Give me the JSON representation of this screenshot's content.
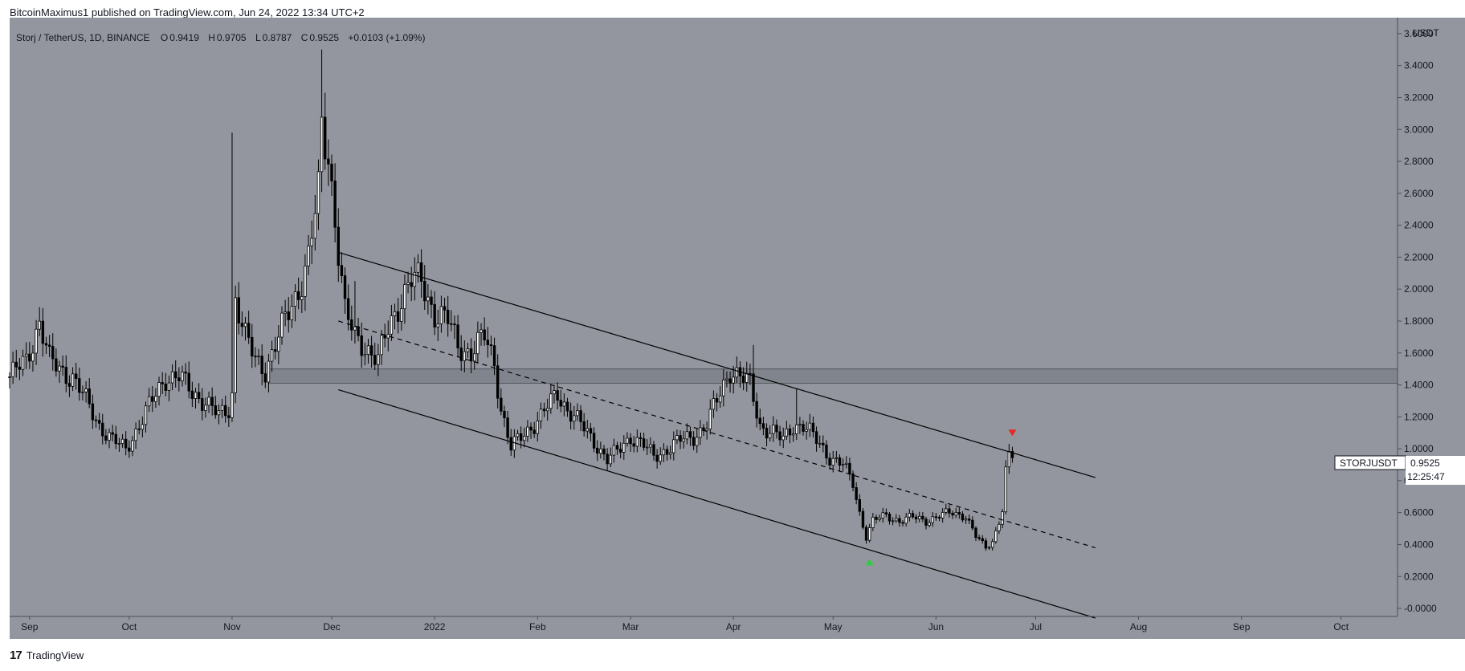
{
  "header": {
    "published_by": "BitcoinMaximus1 published on TradingView.com, Jun 24, 2022 13:34 UTC+2"
  },
  "footer": {
    "brand": "TradingView",
    "brand_mark": "17"
  },
  "legend": {
    "symbol": "Storj / TetherUS, 1D, BINANCE",
    "o_label": "O",
    "o": "0.9419",
    "h_label": "H",
    "h": "0.9705",
    "l_label": "L",
    "l": "0.8787",
    "c_label": "C",
    "c": "0.9525",
    "change": "+0.0103 (+1.09%)"
  },
  "price_tag": {
    "symbol": "STORJUSDT",
    "price": "0.9525",
    "countdown": "12:25:47"
  },
  "colors": {
    "background": "#93969e",
    "candle": "#000000",
    "channel": "#000000",
    "zone": "#7a7d85",
    "up_marker": "#2ecc40",
    "down_marker": "#e8281f"
  },
  "chart_data": {
    "type": "candlestick",
    "currency": "USDT",
    "ylim": [
      -0.05,
      3.7
    ],
    "y_ticks": [
      -0.0,
      0.2,
      0.4,
      0.6,
      0.8,
      1.0,
      1.2,
      1.4,
      1.6,
      1.8,
      2.0,
      2.2,
      2.4,
      2.6,
      2.8,
      3.0,
      3.2,
      3.4,
      3.6
    ],
    "y_tick_labels": [
      "-0.0000",
      "0.2000",
      "0.4000",
      "0.6000",
      "0.8000",
      "1.0000",
      "1.2000",
      "1.4000",
      "1.6000",
      "1.8000",
      "2.0000",
      "2.2000",
      "2.4000",
      "2.6000",
      "2.8000",
      "3.0000",
      "3.2000",
      "3.4000",
      "3.6000"
    ],
    "x_range": [
      "2021-08-26",
      "2022-10-18"
    ],
    "x_ticks": [
      {
        "date": "2021-09-01",
        "label": "Sep"
      },
      {
        "date": "2021-10-01",
        "label": "Oct"
      },
      {
        "date": "2021-11-01",
        "label": "Nov"
      },
      {
        "date": "2021-12-01",
        "label": "Dec"
      },
      {
        "date": "2022-01-01",
        "label": "2022"
      },
      {
        "date": "2022-02-01",
        "label": "Feb"
      },
      {
        "date": "2022-03-01",
        "label": "Mar"
      },
      {
        "date": "2022-04-01",
        "label": "Apr"
      },
      {
        "date": "2022-05-01",
        "label": "May"
      },
      {
        "date": "2022-06-01",
        "label": "Jun"
      },
      {
        "date": "2022-07-01",
        "label": "Jul"
      },
      {
        "date": "2022-08-01",
        "label": "Aug"
      },
      {
        "date": "2022-09-01",
        "label": "Sep"
      },
      {
        "date": "2022-10-01",
        "label": "Oct"
      }
    ],
    "close_path": [
      [
        "2021-08-26",
        1.45
      ],
      [
        "2021-08-31",
        1.55
      ],
      [
        "2021-09-04",
        1.8
      ],
      [
        "2021-09-07",
        1.55
      ],
      [
        "2021-09-10",
        1.5
      ],
      [
        "2021-09-14",
        1.45
      ],
      [
        "2021-09-18",
        1.3
      ],
      [
        "2021-09-22",
        1.15
      ],
      [
        "2021-09-26",
        1.05
      ],
      [
        "2021-09-30",
        1.0
      ],
      [
        "2021-10-04",
        1.15
      ],
      [
        "2021-10-08",
        1.3
      ],
      [
        "2021-10-12",
        1.45
      ],
      [
        "2021-10-16",
        1.45
      ],
      [
        "2021-10-20",
        1.35
      ],
      [
        "2021-10-24",
        1.3
      ],
      [
        "2021-10-28",
        1.2
      ],
      [
        "2021-10-31",
        1.25
      ],
      [
        "2021-11-01",
        1.35
      ],
      [
        "2021-11-02",
        1.95
      ],
      [
        "2021-11-05",
        1.7
      ],
      [
        "2021-11-08",
        1.55
      ],
      [
        "2021-11-11",
        1.5
      ],
      [
        "2021-11-14",
        1.65
      ],
      [
        "2021-11-18",
        1.85
      ],
      [
        "2021-11-21",
        2.0
      ],
      [
        "2021-11-24",
        2.2
      ],
      [
        "2021-11-27",
        2.6
      ],
      [
        "2021-11-28",
        3.0
      ],
      [
        "2021-11-30",
        2.85
      ],
      [
        "2021-12-03",
        2.25
      ],
      [
        "2021-12-05",
        1.85
      ],
      [
        "2021-12-08",
        1.7
      ],
      [
        "2021-12-11",
        1.65
      ],
      [
        "2021-12-15",
        1.55
      ],
      [
        "2021-12-18",
        1.75
      ],
      [
        "2021-12-22",
        1.95
      ],
      [
        "2021-12-25",
        2.05
      ],
      [
        "2021-12-28",
        2.05
      ],
      [
        "2022-01-01",
        1.85
      ],
      [
        "2022-01-05",
        1.8
      ],
      [
        "2022-01-08",
        1.65
      ],
      [
        "2022-01-12",
        1.6
      ],
      [
        "2022-01-16",
        1.7
      ],
      [
        "2022-01-19",
        1.55
      ],
      [
        "2022-01-21",
        1.25
      ],
      [
        "2022-01-24",
        1.0
      ],
      [
        "2022-01-28",
        1.1
      ],
      [
        "2022-02-02",
        1.2
      ],
      [
        "2022-02-07",
        1.35
      ],
      [
        "2022-02-10",
        1.25
      ],
      [
        "2022-02-14",
        1.15
      ],
      [
        "2022-02-18",
        1.05
      ],
      [
        "2022-02-22",
        0.93
      ],
      [
        "2022-02-25",
        0.98
      ],
      [
        "2022-03-01",
        1.08
      ],
      [
        "2022-03-05",
        1.02
      ],
      [
        "2022-03-08",
        0.95
      ],
      [
        "2022-03-12",
        1.0
      ],
      [
        "2022-03-16",
        1.05
      ],
      [
        "2022-03-20",
        1.08
      ],
      [
        "2022-03-24",
        1.15
      ],
      [
        "2022-03-28",
        1.35
      ],
      [
        "2022-03-31",
        1.5
      ],
      [
        "2022-04-03",
        1.45
      ],
      [
        "2022-04-06",
        1.4
      ],
      [
        "2022-04-09",
        1.15
      ],
      [
        "2022-04-13",
        1.1
      ],
      [
        "2022-04-16",
        1.05
      ],
      [
        "2022-04-19",
        1.15
      ],
      [
        "2022-04-22",
        1.15
      ],
      [
        "2022-04-26",
        1.05
      ],
      [
        "2022-04-30",
        0.95
      ],
      [
        "2022-05-04",
        0.9
      ],
      [
        "2022-05-07",
        0.78
      ],
      [
        "2022-05-09",
        0.6
      ],
      [
        "2022-05-11",
        0.45
      ],
      [
        "2022-05-13",
        0.55
      ],
      [
        "2022-05-17",
        0.58
      ],
      [
        "2022-05-21",
        0.55
      ],
      [
        "2022-05-25",
        0.57
      ],
      [
        "2022-05-29",
        0.55
      ],
      [
        "2022-06-02",
        0.58
      ],
      [
        "2022-06-06",
        0.6
      ],
      [
        "2022-06-10",
        0.58
      ],
      [
        "2022-06-13",
        0.45
      ],
      [
        "2022-06-16",
        0.38
      ],
      [
        "2022-06-18",
        0.42
      ],
      [
        "2022-06-20",
        0.55
      ],
      [
        "2022-06-21",
        0.62
      ],
      [
        "2022-06-22",
        0.85
      ],
      [
        "2022-06-23",
        0.95
      ],
      [
        "2022-06-24",
        0.9525
      ]
    ],
    "spikes": [
      {
        "date": "2021-11-01",
        "high": 2.98
      },
      {
        "date": "2021-11-28",
        "high": 3.5
      },
      {
        "date": "2022-04-07",
        "high": 1.65
      },
      {
        "date": "2022-04-20",
        "high": 1.38
      },
      {
        "date": "2021-12-08",
        "high": 2.05
      }
    ],
    "horizontal_zone": {
      "from": 1.41,
      "to": 1.5,
      "start": "2021-11-12"
    },
    "channel": {
      "upper": [
        [
          "2021-12-03",
          2.23
        ],
        [
          "2022-07-19",
          0.82
        ]
      ],
      "middle": [
        [
          "2021-12-03",
          1.8
        ],
        [
          "2022-07-19",
          0.38
        ]
      ],
      "lower": [
        [
          "2021-12-03",
          1.37
        ],
        [
          "2022-07-19",
          -0.06
        ]
      ]
    },
    "markers": [
      {
        "type": "up",
        "date": "2022-05-12",
        "value": 0.29
      },
      {
        "type": "down",
        "date": "2022-06-24",
        "value": 1.1
      }
    ]
  }
}
